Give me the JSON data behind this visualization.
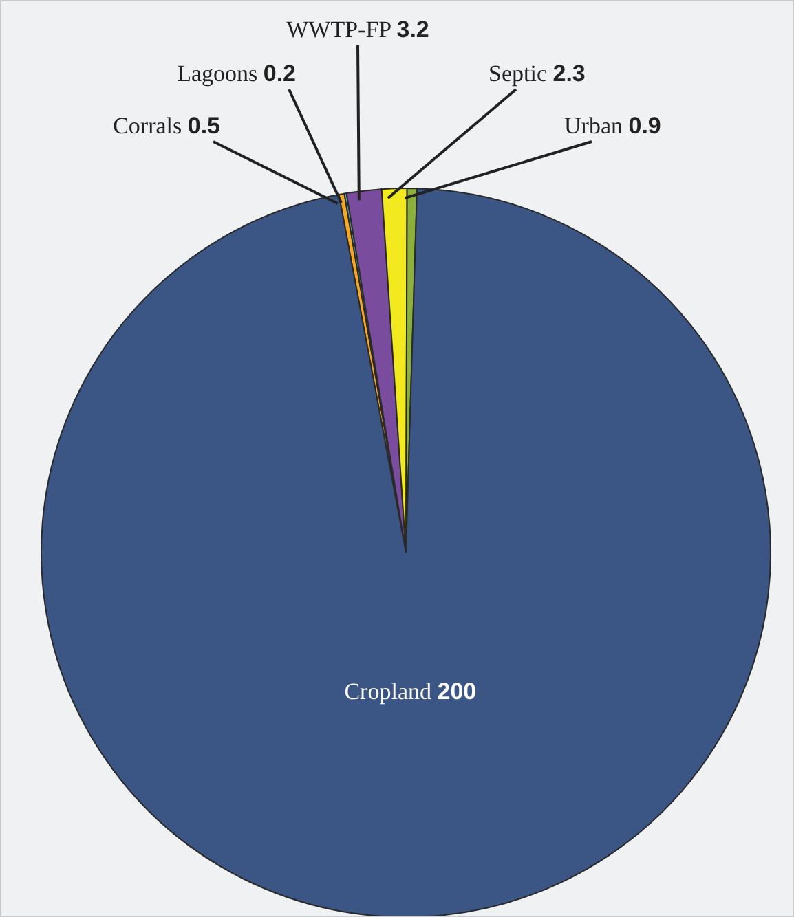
{
  "chart_data": {
    "type": "pie",
    "categories": [
      "Corrals",
      "Lagoons",
      "WWTP-FP",
      "Septic",
      "Urban",
      "Cropland"
    ],
    "values": [
      0.5,
      0.2,
      3.2,
      2.3,
      0.9,
      200
    ],
    "colors": [
      "#f7a823",
      "#4fb8a8",
      "#7a4c9e",
      "#f2ea1f",
      "#8bb03c",
      "#3b5585"
    ],
    "data_labels": true,
    "legend": false
  }
}
